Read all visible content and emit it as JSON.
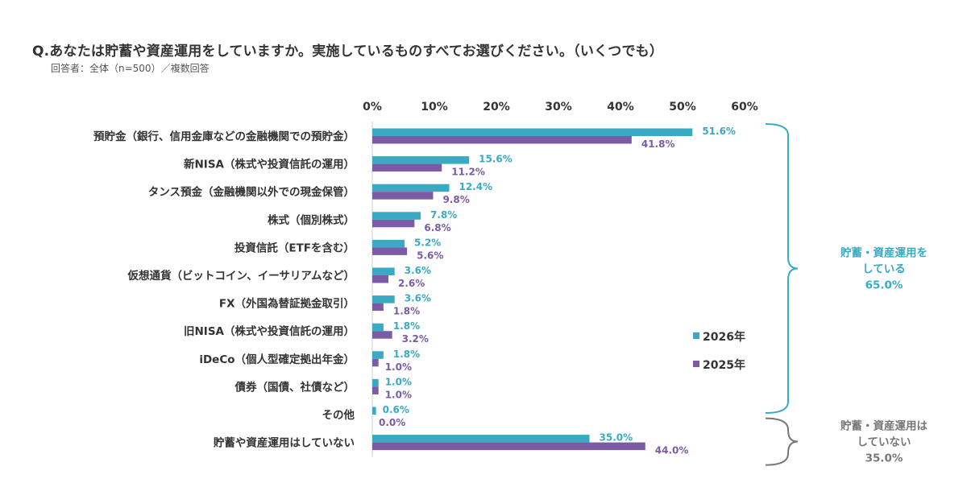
{
  "question": "Q.あなたは貯蓄や資産運用をしていますか。実施しているものすべてお選びください。（いくつでも）",
  "respondents": "回答者：全体（n=500）／複数回答",
  "colors": {
    "y2026": "#3AAAC3",
    "y2025": "#7B5BA6",
    "brace_doing": "#3AAAC3",
    "brace_not": "#777777"
  },
  "chart_data": {
    "type": "bar",
    "orientation": "horizontal",
    "categories": [
      "預貯金（銀行、信用金庫などの金融機関での預貯金）",
      "新NISA（株式や投資信託の運用）",
      "タンス預金（金融機関以外での現金保管）",
      "株式（個別株式）",
      "投資信託（ETFを含む）",
      "仮想通貨（ビットコイン、イーサリアムなど）",
      "FX（外国為替証拠金取引）",
      "旧NISA（株式や投資信託の運用）",
      "iDeCo（個人型確定拠出年金）",
      "債券（国債、社債など）",
      "その他",
      "貯蓄や資産運用はしていない"
    ],
    "series": [
      {
        "name": "2026年",
        "values": [
          51.6,
          15.6,
          12.4,
          7.8,
          5.2,
          3.6,
          3.6,
          1.8,
          1.8,
          1.0,
          0.6,
          35.0
        ],
        "labels": [
          "51.6%",
          "15.6%",
          "12.4%",
          "7.8%",
          "5.2%",
          "3.6%",
          "3.6%",
          "1.8%",
          "1.8%",
          "1.0%",
          "0.6%",
          "35.0%"
        ]
      },
      {
        "name": "2025年",
        "values": [
          41.8,
          11.2,
          9.8,
          6.8,
          5.6,
          2.6,
          1.8,
          3.2,
          1.0,
          1.0,
          0.0,
          44.0
        ],
        "labels": [
          "41.8%",
          "11.2%",
          "9.8%",
          "6.8%",
          "5.6%",
          "2.6%",
          "1.8%",
          "3.2%",
          "1.0%",
          "1.0%",
          "0.0%",
          "44.0%"
        ]
      }
    ],
    "xlim": [
      0,
      60
    ],
    "xticks": [
      "0%",
      "10%",
      "20%",
      "30%",
      "40%",
      "50%",
      "60%"
    ],
    "xtick_values": [
      0,
      10,
      20,
      30,
      40,
      50,
      60
    ],
    "x_axis_position": "top",
    "legend_position": "right",
    "grid": false,
    "annotations": [
      {
        "lines": [
          "貯蓄・資産運用を",
          "している",
          "65.0%"
        ],
        "from_category": 0,
        "to_category": 10
      },
      {
        "lines": [
          "貯蓄・資産運用は",
          "していない",
          "35.0%"
        ],
        "from_category": 11,
        "to_category": 11
      }
    ]
  }
}
